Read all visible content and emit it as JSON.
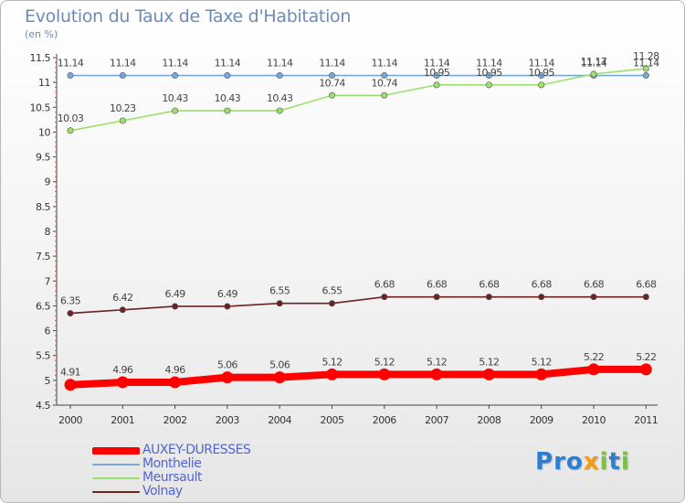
{
  "chart_data": {
    "type": "line",
    "title": "Evolution du Taux de Taxe d'Habitation",
    "subtitle": "(en %)",
    "xlabel": "",
    "ylabel": "",
    "x": [
      "2000",
      "2001",
      "2002",
      "2003",
      "2004",
      "2005",
      "2006",
      "2007",
      "2008",
      "2009",
      "2010",
      "2011"
    ],
    "ylim": [
      4.5,
      11.5
    ],
    "yticks": [
      "4.5",
      "5",
      "5.5",
      "6",
      "6.5",
      "7",
      "7.5",
      "8",
      "8.5",
      "9",
      "9.5",
      "10",
      "10.5",
      "11",
      "11.5"
    ],
    "grid": false,
    "legend_position": "bottom-left",
    "series": [
      {
        "name": "AUXEY-DURESSES",
        "color": "#ff0000",
        "values": [
          4.91,
          4.96,
          4.96,
          5.06,
          5.06,
          5.12,
          5.12,
          5.12,
          5.12,
          5.12,
          5.22,
          5.22
        ],
        "labels": [
          "4.91",
          "4.96",
          "4.96",
          "5.06",
          "5.06",
          "5.12",
          "5.12",
          "5.12",
          "5.12",
          "5.12",
          "5.22",
          "5.22"
        ]
      },
      {
        "name": "Monthelie",
        "color": "#78a8d8",
        "values": [
          11.14,
          11.14,
          11.14,
          11.14,
          11.14,
          11.14,
          11.14,
          11.14,
          11.14,
          11.14,
          11.14,
          11.14
        ],
        "labels": [
          "11.14",
          "11.14",
          "11.14",
          "11.14",
          "11.14",
          "11.14",
          "11.14",
          "11.14",
          "11.14",
          "11.14",
          "11.14",
          "11.14"
        ]
      },
      {
        "name": "Meursault",
        "color": "#9be06a",
        "values": [
          10.03,
          10.23,
          10.43,
          10.43,
          10.43,
          10.74,
          10.74,
          10.95,
          10.95,
          10.95,
          11.17,
          11.28
        ],
        "labels": [
          "10.03",
          "10.23",
          "10.43",
          "10.43",
          "10.43",
          "10.74",
          "10.74",
          "10.95",
          "10.95",
          "10.95",
          "11.17",
          "11.28"
        ]
      },
      {
        "name": "Volnay",
        "color": "#6b2222",
        "values": [
          6.35,
          6.42,
          6.49,
          6.49,
          6.55,
          6.55,
          6.68,
          6.68,
          6.68,
          6.68,
          6.68,
          6.68
        ],
        "labels": [
          "6.35",
          "6.42",
          "6.49",
          "6.49",
          "6.55",
          "6.55",
          "6.68",
          "6.68",
          "6.68",
          "6.68",
          "6.68",
          "6.68"
        ]
      }
    ]
  },
  "logo": {
    "text": "Proxiti",
    "colors": [
      "#2a7fd4",
      "#f39c12",
      "#7cc242"
    ]
  }
}
